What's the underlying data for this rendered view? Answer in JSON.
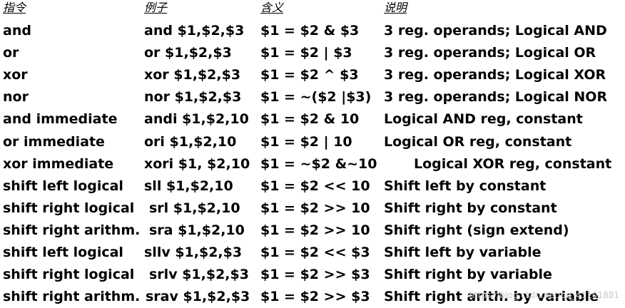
{
  "header": {
    "col1": "指令",
    "col2": "例子",
    "col3": "含义",
    "col4": "说明"
  },
  "rows": [
    {
      "instruction": "and",
      "example": "and $1,$2,$3",
      "meaning": "$1 = $2 & $3",
      "comment": "3 reg. operands; Logical AND"
    },
    {
      "instruction": "or",
      "example": "or $1,$2,$3",
      "meaning": "$1 = $2 | $3",
      "comment": "3 reg. operands; Logical OR"
    },
    {
      "instruction": "xor",
      "example": "xor $1,$2,$3",
      "meaning": "$1 = $2 ^ $3",
      "comment": "3 reg. operands; Logical XOR"
    },
    {
      "instruction": "nor",
      "example": "nor $1,$2,$3",
      "meaning": "$1 = ~($2 |$3)",
      "comment": "3 reg. operands; Logical NOR"
    },
    {
      "instruction": "and immediate",
      "example": "andi $1,$2,10",
      "meaning": "$1 = $2 & 10",
      "comment": "Logical AND reg, constant"
    },
    {
      "instruction": "or immediate",
      "example": "ori $1,$2,10",
      "meaning": "$1 = $2 | 10",
      "comment": "Logical OR reg, constant"
    },
    {
      "instruction": "xor immediate",
      "example": "xori $1, $2,10",
      "meaning": "$1 = ~$2 &~10",
      "comment": "Logical XOR reg, constant"
    },
    {
      "instruction": "shift left logical",
      "example": "sll $1,$2,10",
      "meaning": "$1 = $2 << 10",
      "comment": "Shift left by constant"
    },
    {
      "instruction": "shift right logical",
      "example": "srl $1,$2,10",
      "meaning": "$1 = $2 >> 10",
      "comment": "Shift right by constant"
    },
    {
      "instruction": "shift right arithm.",
      "example": "sra $1,$2,10",
      "meaning": "$1 = $2 >> 10",
      "comment": "Shift right (sign extend)"
    },
    {
      "instruction": "shift left logical",
      "example": "sllv $1,$2,$3",
      "meaning": "$1 = $2 << $3",
      "comment": "Shift left by variable"
    },
    {
      "instruction": "shift right logical",
      "example": "srlv $1,$2,$3",
      "meaning": "$1 = $2 >> $3",
      "comment": "Shift right by variable"
    },
    {
      "instruction": "shift right arithm.",
      "example": "srav $1,$2,$3",
      "meaning": "$1 = $2 >> $3",
      "comment": "Shift right arith. by variable"
    }
  ],
  "watermark": "https://blog.csdn.net/qq_41101881"
}
